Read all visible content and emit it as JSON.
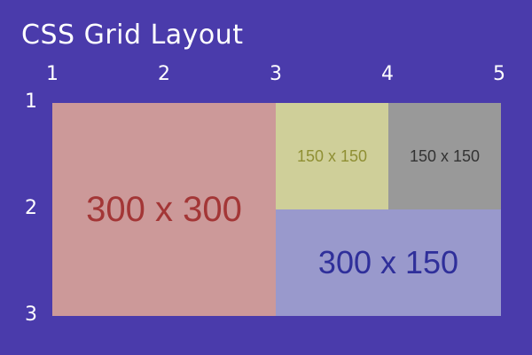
{
  "title": "CSS Grid Layout",
  "columns": [
    "1",
    "2",
    "3",
    "4",
    "5"
  ],
  "rows": [
    "1",
    "2",
    "3"
  ],
  "cells": {
    "a": {
      "label": "300 x 300",
      "color": "#cc9999"
    },
    "b": {
      "label": "150 x 150",
      "color": "#cfcf99"
    },
    "c": {
      "label": "150 x 150",
      "color": "#999999"
    },
    "d": {
      "label": "300 x 150",
      "color": "#9999cc"
    }
  },
  "colors": {
    "background": "#4a3bab",
    "text": "#ffffff"
  }
}
